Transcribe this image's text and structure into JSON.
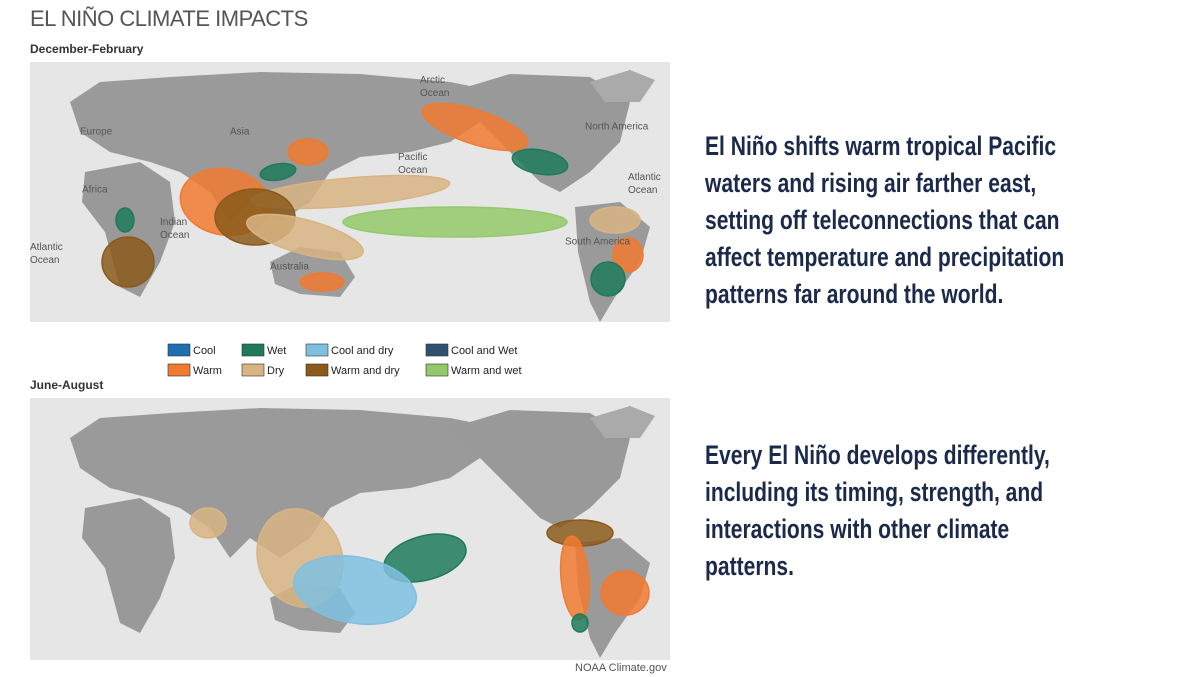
{
  "header": {
    "title": "EL NIÑO CLIMATE IMPACTS"
  },
  "maps": [
    {
      "season": "December-February",
      "labels": [
        "Arctic Ocean",
        "Europe",
        "Asia",
        "Pacific Ocean",
        "North America",
        "Atlantic Ocean",
        "Africa",
        "Indian Ocean",
        "Atlantic Ocean",
        "Australia",
        "South America"
      ]
    },
    {
      "season": "June-August"
    }
  ],
  "legend": [
    {
      "label": "Cool",
      "color": "#1f6fb0"
    },
    {
      "label": "Wet",
      "color": "#1e7a5a"
    },
    {
      "label": "Cool and dry",
      "color": "#7fbfe0"
    },
    {
      "label": "Cool and Wet",
      "color": "#2f5070"
    },
    {
      "label": "Warm",
      "color": "#f07a30"
    },
    {
      "label": "Dry",
      "color": "#d8b483"
    },
    {
      "label": "Warm and dry",
      "color": "#8b5a1a"
    },
    {
      "label": "Warm and wet",
      "color": "#94c96a"
    }
  ],
  "credit": "NOAA Climate.gov",
  "paragraphs": [
    [
      "El Niño shifts warm tropical Pacific",
      "waters and rising air farther east,",
      "setting off teleconnections that can",
      "affect temperature and precipitation",
      "patterns far around the world."
    ],
    [
      "Every El Niño develops differently,",
      "including its timing, strength, and",
      "interactions with other climate",
      "patterns."
    ]
  ]
}
